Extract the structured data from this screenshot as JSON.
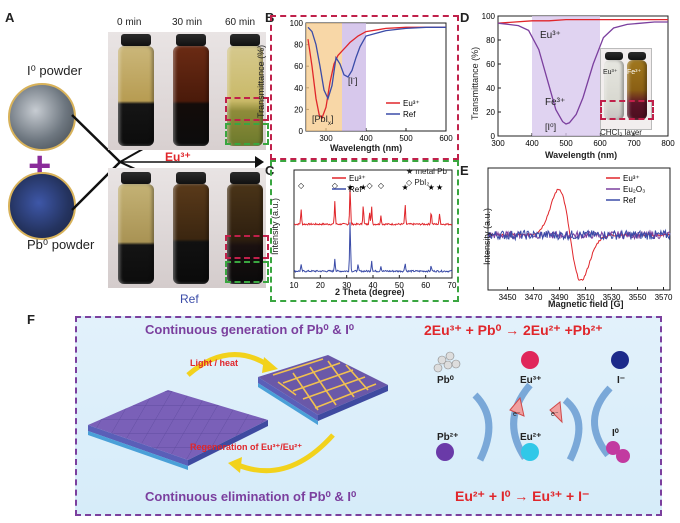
{
  "figure": {
    "panels": {
      "A": "A",
      "B": "B",
      "C": "C",
      "D": "D",
      "E": "E",
      "F": "F"
    },
    "colors": {
      "red": "#e0262b",
      "blue": "#3b4ca8",
      "purple": "#7b3f9e",
      "green": "#3aa640",
      "dashed_red": "#c0204a"
    }
  },
  "panel_a": {
    "times": [
      "0 min",
      "30 min",
      "60 min"
    ],
    "i_powder": "I⁰ powder",
    "pb_powder": "Pb⁰ powder",
    "plus": "+",
    "eu_label": "Eu³⁺",
    "ref_label": "Ref"
  },
  "panel_b": {
    "ylabel": "Transmittance (%)",
    "xlabel": "Wavelength (nm)",
    "annot_pbi": "[PbI",
    "annot_pbi_sub": "x",
    "annot_pbi_end": "]",
    "annot_i": "[I",
    "annot_i_sup": "-",
    "annot_i_end": "]"
  },
  "panel_c": {
    "ylabel": "Intensity (a.u.)",
    "xlabel": "2 Theta (degree)",
    "legend_metal": "★ metal Pb",
    "legend_pbi2": "◇ PbI₂"
  },
  "panel_d": {
    "ylabel": "Transmittance (%)",
    "xlabel": "Wavelength (nm)",
    "eu_label": "Eu³⁺",
    "fe_label": "Fe³⁺",
    "i0_label": "[I⁰]",
    "inset_eu": "Eu³⁺",
    "inset_fe": "Fe³⁺",
    "inset_caption": "CHCl₃ layer"
  },
  "panel_e": {
    "ylabel": "Intensity (a.u.)",
    "xlabel": "Magnetic field [G]"
  },
  "panel_f": {
    "top_title": "Continuous generation of Pb⁰ & I⁰",
    "bottom_title": "Continuous elimination of Pb⁰ & I⁰",
    "light_heat": "Light / heat",
    "regeneration": "Regeneration of Eu³⁺/Eu²⁺",
    "reaction_top": "2Eu³⁺ + Pb⁰ → 2Eu²⁺ +Pb²⁺",
    "reaction_bottom": "Eu²⁺ + I⁰ → Eu³⁺ + I⁻",
    "species": {
      "pb0": "Pb⁰",
      "eu3": "Eu³⁺",
      "i_minus": "I⁻",
      "pb2": "Pb²⁺",
      "eu2": "Eu²⁺",
      "i0": "I⁰",
      "e1": "e⁻",
      "e2": "e⁻"
    }
  },
  "chart_data": [
    {
      "id": "B",
      "type": "line",
      "title": "",
      "xlabel": "Wavelength (nm)",
      "ylabel": "Transmittance (%)",
      "xlim": [
        250,
        600
      ],
      "ylim": [
        0,
        100
      ],
      "xticks": [
        300,
        400,
        500,
        600
      ],
      "yticks": [
        0,
        20,
        40,
        60,
        80,
        100
      ],
      "shaded_regions": [
        {
          "from": 250,
          "to": 340,
          "color": "#f6c98a"
        },
        {
          "from": 340,
          "to": 400,
          "color": "#c9b6e6"
        }
      ],
      "series": [
        {
          "name": "Eu³⁺",
          "color": "#e0262b",
          "x": [
            255,
            265,
            275,
            283,
            290,
            300,
            310,
            320,
            330,
            340,
            350,
            360,
            370,
            380,
            400,
            450,
            500,
            550,
            600
          ],
          "y": [
            85,
            60,
            30,
            15,
            12,
            22,
            45,
            62,
            70,
            74,
            78,
            82,
            85,
            88,
            92,
            95,
            96,
            96,
            96
          ]
        },
        {
          "name": "Ref",
          "color": "#3b4ca8",
          "x": [
            255,
            265,
            275,
            285,
            295,
            305,
            315,
            325,
            335,
            345,
            355,
            365,
            375,
            385,
            400,
            450,
            500,
            550,
            600
          ],
          "y": [
            96,
            92,
            80,
            60,
            38,
            30,
            42,
            68,
            62,
            52,
            50,
            56,
            68,
            78,
            88,
            93,
            95,
            96,
            96
          ]
        }
      ]
    },
    {
      "id": "C",
      "type": "line",
      "title": "",
      "xlabel": "2 Theta (degree)",
      "ylabel": "Intensity (a.u.)",
      "xlim": [
        10,
        70
      ],
      "xticks": [
        10,
        20,
        30,
        40,
        50,
        60,
        70
      ],
      "series": [
        {
          "name": "Eu³⁺",
          "color": "#e0262b",
          "offset": 1,
          "peaks": [
            [
              12.7,
              0.35
            ],
            [
              25.5,
              0.55
            ],
            [
              31.3,
              0.9
            ],
            [
              36.3,
              0.45
            ],
            [
              38.7,
              0.3
            ],
            [
              39.5,
              0.4
            ],
            [
              43.0,
              0.2
            ],
            [
              52.2,
              0.45
            ],
            [
              62.1,
              0.3
            ],
            [
              65.3,
              0.25
            ]
          ]
        },
        {
          "name": "Ref",
          "color": "#3b4ca8",
          "offset": 0,
          "peaks": [
            [
              12.7,
              0.15
            ],
            [
              25.5,
              0.3
            ],
            [
              31.3,
              1.2
            ],
            [
              34.3,
              0.15
            ],
            [
              39.5,
              0.25
            ],
            [
              43.0,
              0.12
            ],
            [
              52.2,
              0.2
            ],
            [
              62.1,
              0.12
            ]
          ]
        }
      ],
      "annotations": {
        "stars": [
          31.3,
          36.3,
          52.2,
          62.1,
          65.3
        ],
        "diamonds": [
          12.7,
          25.5,
          38.7,
          43.0
        ]
      }
    },
    {
      "id": "D",
      "type": "line",
      "title": "",
      "xlabel": "Wavelength (nm)",
      "ylabel": "Transmittance (%)",
      "xlim": [
        300,
        800
      ],
      "ylim": [
        0,
        100
      ],
      "xticks": [
        300,
        400,
        500,
        600,
        700,
        800
      ],
      "yticks": [
        0,
        20,
        40,
        60,
        80,
        100
      ],
      "shaded_regions": [
        {
          "from": 400,
          "to": 600,
          "color": "#d8c8ee"
        }
      ],
      "series": [
        {
          "name": "Eu³⁺",
          "color": "#e0262b",
          "x": [
            300,
            350,
            400,
            450,
            500,
            550,
            600,
            650,
            700,
            750,
            800
          ],
          "y": [
            94,
            95,
            96,
            96,
            97,
            97,
            97,
            97,
            97,
            97,
            97
          ]
        },
        {
          "name": "Fe³⁺",
          "color": "#7b3f9e",
          "x": [
            300,
            330,
            360,
            390,
            420,
            450,
            470,
            490,
            500,
            510,
            530,
            550,
            580,
            610,
            640,
            680,
            720,
            760,
            800
          ],
          "y": [
            94,
            93,
            92,
            88,
            72,
            42,
            22,
            12,
            10,
            11,
            18,
            32,
            60,
            82,
            90,
            93,
            94,
            95,
            95
          ]
        }
      ]
    },
    {
      "id": "E",
      "type": "line",
      "title": "",
      "xlabel": "Magnetic field [G]",
      "ylabel": "Intensity (a.u.)",
      "xlim": [
        3435,
        3575
      ],
      "xticks": [
        3450,
        3470,
        3490,
        3510,
        3530,
        3550,
        3570
      ],
      "series": [
        {
          "name": "Eu³⁺",
          "color": "#e0262b",
          "type": "derivative",
          "center": 3498,
          "width": 12,
          "amplitude": 1.0
        },
        {
          "name": "Eu₂O₃",
          "color": "#7b3f9e",
          "type": "noise",
          "amplitude": 0.08
        },
        {
          "name": "Ref",
          "color": "#3b4ca8",
          "type": "noise",
          "amplitude": 0.1
        }
      ]
    }
  ]
}
